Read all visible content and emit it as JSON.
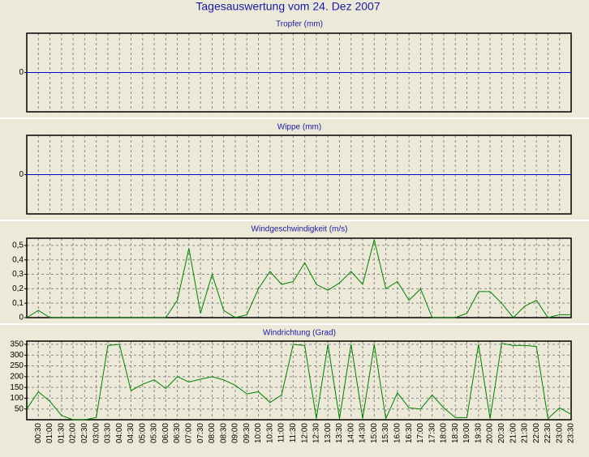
{
  "title": "Tagesauswertung vom 24. Dez 2007",
  "chart_data": [
    {
      "type": "line",
      "title": "Tropfer (mm)",
      "ylim": [
        -1,
        1
      ],
      "yticks": [
        0
      ],
      "grid": true,
      "series": [
        {
          "color": "#0000c0",
          "values": [
            0,
            0,
            0,
            0,
            0,
            0,
            0,
            0,
            0,
            0,
            0,
            0,
            0,
            0,
            0,
            0,
            0,
            0,
            0,
            0,
            0,
            0,
            0,
            0,
            0,
            0,
            0,
            0,
            0,
            0,
            0,
            0,
            0,
            0,
            0,
            0,
            0,
            0,
            0,
            0,
            0,
            0,
            0,
            0,
            0,
            0,
            0,
            0
          ]
        }
      ]
    },
    {
      "type": "line",
      "title": "Wippe (mm)",
      "ylim": [
        -1,
        1
      ],
      "yticks": [
        0
      ],
      "grid": true,
      "series": [
        {
          "color": "#0000c0",
          "values": [
            0,
            0,
            0,
            0,
            0,
            0,
            0,
            0,
            0,
            0,
            0,
            0,
            0,
            0,
            0,
            0,
            0,
            0,
            0,
            0,
            0,
            0,
            0,
            0,
            0,
            0,
            0,
            0,
            0,
            0,
            0,
            0,
            0,
            0,
            0,
            0,
            0,
            0,
            0,
            0,
            0,
            0,
            0,
            0,
            0,
            0,
            0,
            0
          ]
        }
      ]
    },
    {
      "type": "line",
      "title": "Windgeschwindigkeit (m/s)",
      "ylim": [
        0,
        0.55
      ],
      "yticks": [
        0,
        {
          "value": 0.1,
          "label": "0,1"
        },
        {
          "value": 0.2,
          "label": "0,2"
        },
        {
          "value": 0.3,
          "label": "0,3"
        },
        {
          "value": 0.4,
          "label": "0,4"
        },
        {
          "value": 0.5,
          "label": "0,5"
        }
      ],
      "grid": true,
      "series": [
        {
          "color": "#008000",
          "values": [
            0,
            0.05,
            0,
            0,
            0,
            0,
            0,
            0,
            0,
            0,
            0,
            0,
            0,
            0.12,
            0.48,
            0.03,
            0.3,
            0.05,
            0,
            0.02,
            0.2,
            0.32,
            0.23,
            0.25,
            0.38,
            0.23,
            0.19,
            0.24,
            0.32,
            0.23,
            0.54,
            0.2,
            0.25,
            0.12,
            0.2,
            0,
            0,
            0,
            0.03,
            0.18,
            0.18,
            0.1,
            0,
            0.08,
            0.12,
            0,
            0.02,
            0.02
          ]
        }
      ]
    },
    {
      "type": "line",
      "title": "Windrichtung (Grad)",
      "ylim": [
        0,
        365
      ],
      "yticks": [
        50,
        100,
        150,
        200,
        250,
        300,
        350
      ],
      "grid": true,
      "categories": [
        null,
        "00:30",
        "01:00",
        "01:30",
        "02:00",
        "02:30",
        "03:00",
        "03:30",
        "04:00",
        "04:30",
        "05:00",
        "05:30",
        "06:00",
        "06:30",
        "07:00",
        "07:30",
        "08:00",
        "08:30",
        "09:00",
        "09:30",
        "10:00",
        "10:30",
        "11:00",
        "11:30",
        "12:00",
        "12:30",
        "13:00",
        "13:30",
        "14:00",
        "14:30",
        "15:00",
        "15:30",
        "16:00",
        "16:30",
        "17:00",
        "17:30",
        "18:00",
        "18:30",
        "19:00",
        "19:30",
        "20:00",
        "20:30",
        "21:00",
        "21:30",
        "22:00",
        "22:30",
        "23:00",
        "23:30"
      ],
      "series": [
        {
          "color": "#008000",
          "values": [
            50,
            130,
            85,
            20,
            0,
            0,
            10,
            345,
            350,
            135,
            165,
            185,
            145,
            200,
            175,
            188,
            200,
            185,
            160,
            120,
            130,
            80,
            115,
            350,
            345,
            5,
            350,
            5,
            350,
            5,
            350,
            5,
            125,
            55,
            50,
            115,
            55,
            10,
            10,
            350,
            5,
            355,
            345,
            345,
            340,
            5,
            55,
            25
          ]
        }
      ]
    }
  ]
}
